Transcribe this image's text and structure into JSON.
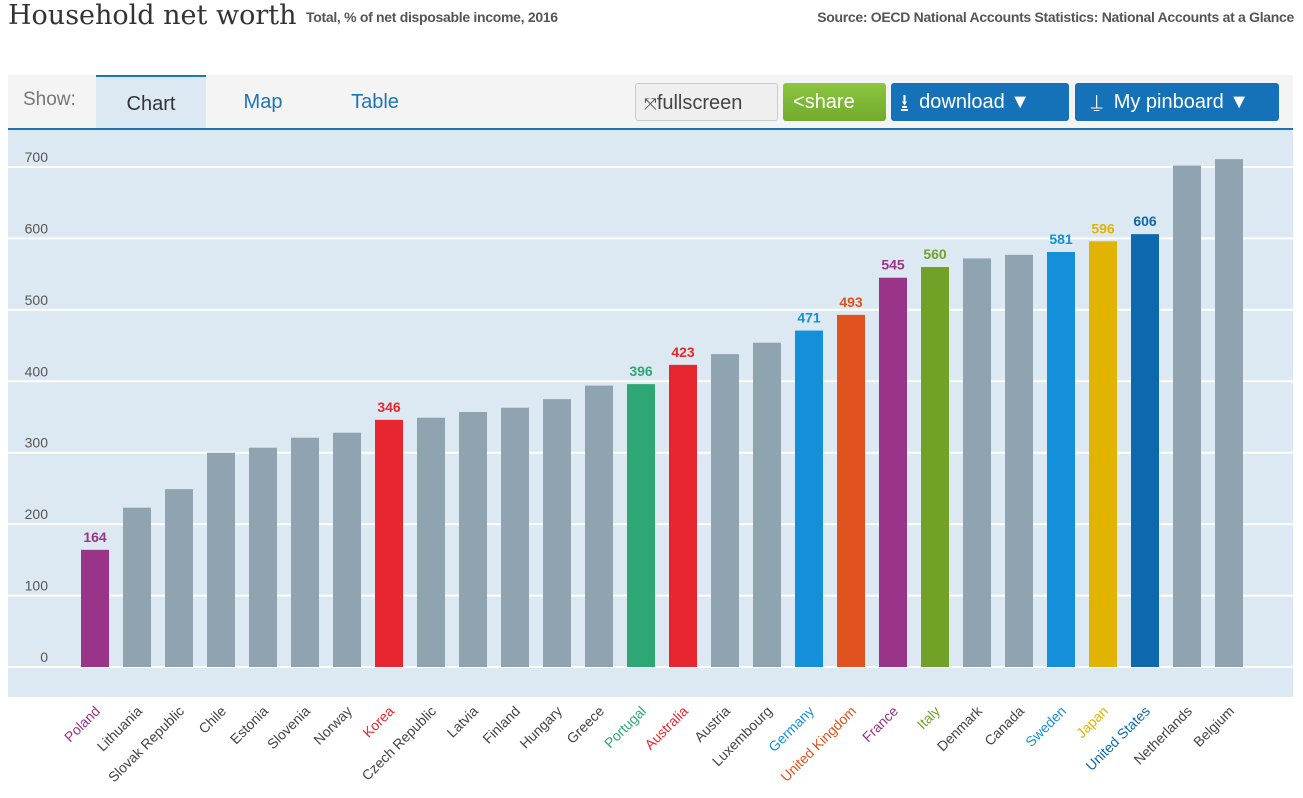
{
  "header": {
    "title": "Household net worth",
    "subtitle": "Total, % of net disposable income, 2016",
    "source": "Source: OECD National Accounts Statistics: National Accounts at a Glance"
  },
  "toolbar": {
    "show_label": "Show:",
    "tabs": [
      {
        "label": "Chart",
        "active": true
      },
      {
        "label": "Map"
      },
      {
        "label": "Table"
      }
    ],
    "fullscreen": "fullscreen",
    "share": "share",
    "download": "download ▼",
    "pinboard": "My pinboard ▼",
    "icons": [
      "fullscreen-icon",
      "share-icon",
      "download-icon",
      "pin-icon"
    ]
  },
  "chart_data": {
    "type": "bar",
    "title": "",
    "xlabel": "",
    "ylabel": "",
    "ylim": [
      0,
      700
    ],
    "yticks": [
      0,
      100,
      200,
      300,
      400,
      500,
      600,
      700
    ],
    "grid": true,
    "categories": [
      "Poland",
      "Lithuania",
      "Slovak Republic",
      "Chile",
      "Estonia",
      "Slovenia",
      "Norway",
      "Korea",
      "Czech Republic",
      "Latvia",
      "Finland",
      "Hungary",
      "Greece",
      "Portugal",
      "Australia",
      "Austria",
      "Luxembourg",
      "Germany",
      "United Kingdom",
      "France",
      "Italy",
      "Denmark",
      "Canada",
      "Sweden",
      "Japan",
      "United States",
      "Netherlands",
      "Belgium"
    ],
    "values": [
      164,
      223,
      249,
      300,
      307,
      321,
      328,
      346,
      349,
      357,
      363,
      375,
      394,
      396,
      423,
      438,
      454,
      471,
      493,
      545,
      560,
      572,
      577,
      581,
      596,
      606,
      702,
      711
    ],
    "highlighted": {
      "Poland": "#993489",
      "Korea": "#e8262f",
      "Portugal": "#2fa774",
      "Australia": "#e8262f",
      "Germany": "#1390d9",
      "United Kingdom": "#e0521e",
      "France": "#993489",
      "Italy": "#72a128",
      "Sweden": "#1390d9",
      "Japan": "#e0b400",
      "United States": "#0e68ad"
    },
    "default_color": "#8fa4b0"
  }
}
